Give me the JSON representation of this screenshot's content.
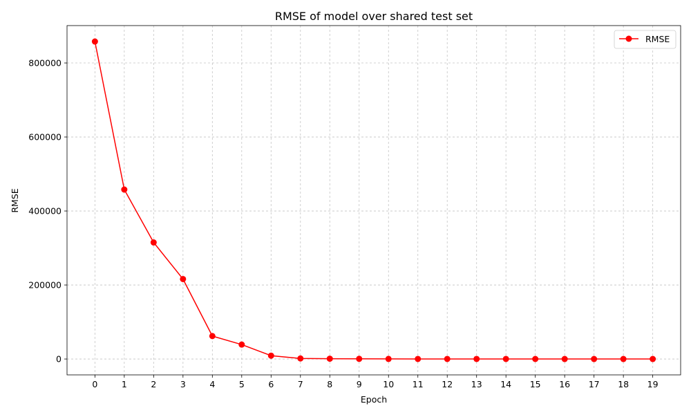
{
  "chart_data": {
    "type": "line",
    "title": "RMSE of model over shared test set",
    "xlabel": "Epoch",
    "ylabel": "RMSE",
    "x": [
      0,
      1,
      2,
      3,
      4,
      5,
      6,
      7,
      8,
      9,
      10,
      11,
      12,
      13,
      14,
      15,
      16,
      17,
      18,
      19
    ],
    "series": [
      {
        "name": "RMSE",
        "color": "#ff0000",
        "marker": "circle",
        "values": [
          858000,
          458000,
          315000,
          216000,
          62000,
          39000,
          9000,
          1500,
          900,
          500,
          300,
          200,
          150,
          120,
          100,
          80,
          70,
          60,
          50,
          40
        ]
      }
    ],
    "xlim": [
      -0.95,
      19.95
    ],
    "ylim": [
      -42900,
      901000
    ],
    "x_ticks": [
      "0",
      "1",
      "2",
      "3",
      "4",
      "5",
      "6",
      "7",
      "8",
      "9",
      "10",
      "11",
      "12",
      "13",
      "14",
      "15",
      "16",
      "17",
      "18",
      "19"
    ],
    "y_ticks": [
      "0",
      "200000",
      "400000",
      "600000",
      "800000"
    ],
    "grid": true,
    "legend_position": "top-right"
  }
}
